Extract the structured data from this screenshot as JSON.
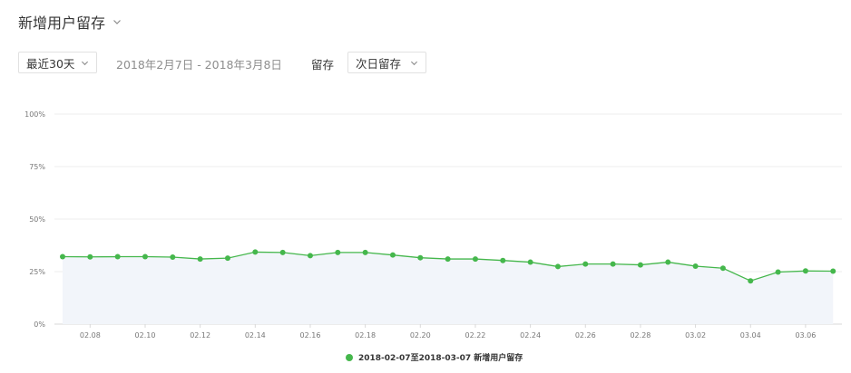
{
  "header": {
    "title": "新增用户留存"
  },
  "controls": {
    "period_select": "最近30天",
    "date_range": "2018年2月7日 - 2018年3月8日",
    "retention_label": "留存",
    "retention_select": "次日留存"
  },
  "colors": {
    "series": "#45b74c",
    "area_fill": "#f2f5fa",
    "grid": "#ececec"
  },
  "chart_data": {
    "type": "area",
    "title": "",
    "xlabel": "",
    "ylabel": "",
    "ylim": [
      0,
      100
    ],
    "y_ticks": [
      "0%",
      "25%",
      "50%",
      "75%",
      "100%"
    ],
    "x_tick_labels": [
      "02.08",
      "02.10",
      "02.12",
      "02.14",
      "02.16",
      "02.18",
      "02.20",
      "02.22",
      "02.24",
      "02.26",
      "02.28",
      "03.02",
      "03.04",
      "03.06"
    ],
    "grid": true,
    "legend_position": "bottom",
    "series": [
      {
        "name": "2018-02-07至2018-03-07 新增用户留存",
        "x": [
          "02.07",
          "02.08",
          "02.09",
          "02.10",
          "02.11",
          "02.12",
          "02.13",
          "02.14",
          "02.15",
          "02.16",
          "02.17",
          "02.18",
          "02.19",
          "02.20",
          "02.21",
          "02.22",
          "02.23",
          "02.24",
          "02.25",
          "02.26",
          "02.27",
          "02.28",
          "03.01",
          "03.02",
          "03.03",
          "03.04",
          "03.05",
          "03.06",
          "03.07"
        ],
        "values": [
          32.1,
          32.0,
          32.1,
          32.1,
          31.9,
          31.0,
          31.4,
          34.3,
          34.1,
          32.6,
          34.1,
          34.1,
          32.9,
          31.6,
          31.0,
          31.0,
          30.3,
          29.5,
          27.4,
          28.6,
          28.6,
          28.2,
          29.5,
          27.6,
          26.6,
          20.6,
          24.8,
          25.3,
          25.2
        ]
      }
    ]
  }
}
